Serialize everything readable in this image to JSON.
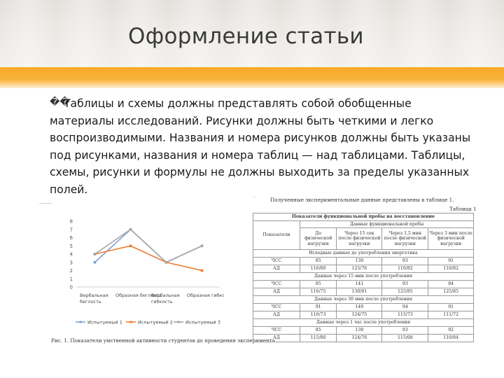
{
  "slide": {
    "title": "Оформление статьи",
    "bullet_glyph": "��",
    "paragraph": "Таблицы и схемы должны представлять собой обобщенные материалы исследований. Рисунки должны быть четкими и легко воспроизводимыми. Названия и номера рисунков должны быть указаны под рисунками, названия и номера таблиц — над таблицами. Таблицы, схемы, рисунки и формулы не должны выходить за пределы указанных полей."
  },
  "colors": {
    "header": "#e3e0dc",
    "accent": "#f7a928",
    "series1": "#7fa3d6",
    "series2": "#ed7d31",
    "series3": "#a5a5a5"
  },
  "chart_data": {
    "type": "line",
    "categories": [
      "Вербальная беглость",
      "Образная беглость",
      "Вербальная гибкость",
      "Образная гибкость"
    ],
    "category_lines": [
      [
        "Вербальная",
        "беглость"
      ],
      [
        "Образная беглость",
        ""
      ],
      [
        "Вербальная",
        "гибкость"
      ],
      [
        "Образная гибкость",
        ""
      ]
    ],
    "yticks": [
      "0",
      "1",
      "2",
      "3",
      "4",
      "5",
      "6",
      "7",
      "8"
    ],
    "ylim": [
      0,
      8
    ],
    "series": [
      {
        "name": "Испытуемый 1",
        "values": [
          3,
          7,
          3,
          5
        ]
      },
      {
        "name": "Испытуемый 2",
        "values": [
          4,
          5,
          3,
          2
        ]
      },
      {
        "name": "Испытуемый 3",
        "values": [
          4,
          7,
          3,
          5
        ]
      }
    ],
    "caption": "Рис. 1. Показатели умственной активности студентов до проведения эксперимента"
  },
  "table": {
    "intro": "Полученные экспериментальные данные представлены в таблице 1.",
    "number": "Таблица 1",
    "title": "Показатели функциональной пробы на восстановление",
    "col_group": "Данные функциональной пробы",
    "col_label": "Показатели",
    "cols": [
      "До физической нагрузки",
      "Через 15 сек после физической нагрузки",
      "Через 1,5 мин после физической нагрузки",
      "Через 3 мин после физической нагрузки"
    ],
    "sections": [
      {
        "title": "Исходные данные до употребления энергетика",
        "rows": [
          [
            "ЧСС",
            "85",
            "130",
            "93",
            "91"
          ],
          [
            "АД",
            "116/80",
            "125/76",
            "110/82",
            "110/82"
          ]
        ]
      },
      {
        "title": "Данные через 15 мин после употребления",
        "rows": [
          [
            "ЧСС",
            "85",
            "141",
            "93",
            "84"
          ],
          [
            "АД",
            "116/75",
            "130/81",
            "125/85",
            "125/85"
          ]
        ]
      },
      {
        "title": "Данные через 30 мин после употребления",
        "rows": [
          [
            "ЧСС",
            "91",
            "140",
            "94",
            "91"
          ],
          [
            "АД",
            "110/73",
            "124/75",
            "115/73",
            "111/72"
          ]
        ]
      },
      {
        "title": "Данные через 1 час после употребления",
        "rows": [
          [
            "ЧСС",
            "85",
            "130",
            "93",
            "92"
          ],
          [
            "АД",
            "115/80",
            "124/76",
            "115/68",
            "110/84"
          ]
        ]
      }
    ]
  }
}
